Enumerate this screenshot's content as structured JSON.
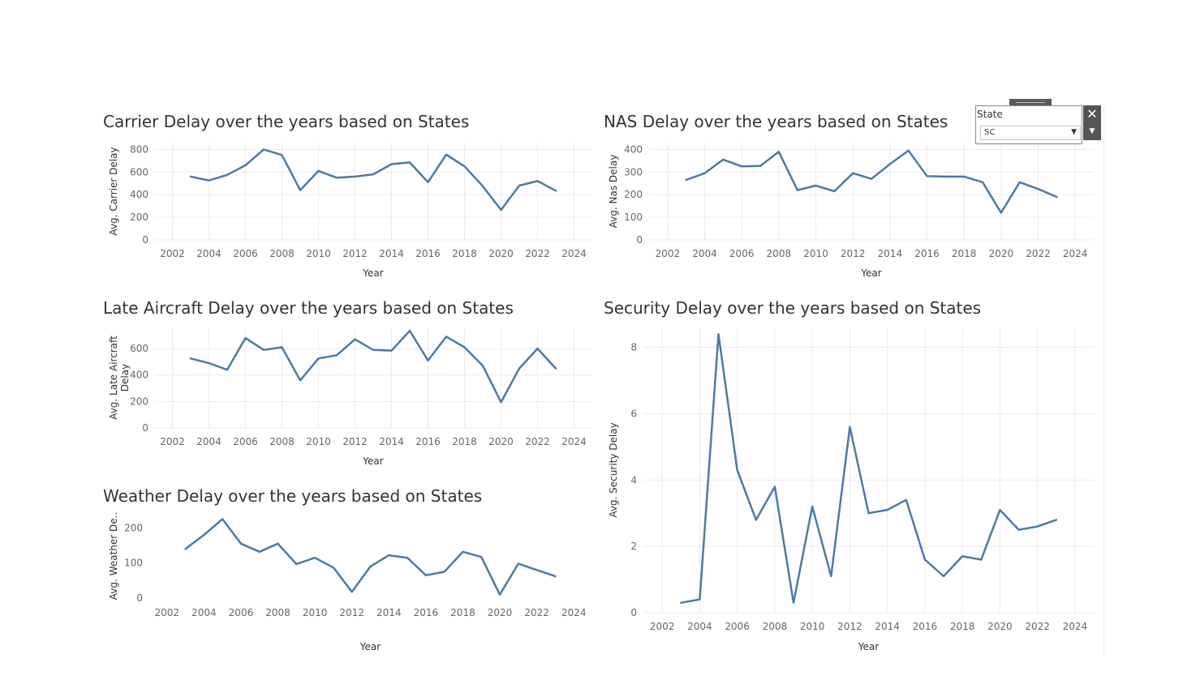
{
  "filter": {
    "label": "State",
    "value": "SC",
    "close_icon": "close-icon",
    "menu_icon": "dropdown-menu-icon"
  },
  "chart_data": [
    {
      "id": "carrier",
      "type": "line",
      "title": "Carrier Delay over the years based on States",
      "xlabel": "Year",
      "ylabel": "Avg. Carrier Delay",
      "xlim": [
        2001,
        2025
      ],
      "ylim": [
        0,
        860
      ],
      "x_ticks": [
        2002,
        2004,
        2006,
        2008,
        2010,
        2012,
        2014,
        2016,
        2018,
        2020,
        2022,
        2024
      ],
      "y_ticks": [
        0,
        200,
        400,
        600,
        800
      ],
      "grid": true,
      "color": "#4e79a7",
      "x": [
        2003,
        2004,
        2005,
        2006,
        2007,
        2008,
        2009,
        2010,
        2011,
        2012,
        2013,
        2014,
        2015,
        2016,
        2017,
        2018,
        2019,
        2020,
        2021,
        2022,
        2023
      ],
      "values": [
        560,
        525,
        575,
        660,
        800,
        750,
        440,
        610,
        550,
        560,
        580,
        670,
        685,
        510,
        755,
        650,
        475,
        265,
        480,
        520,
        435
      ]
    },
    {
      "id": "nas",
      "type": "line",
      "title": "NAS Delay over the years based on States",
      "xlabel": "Year",
      "ylabel": "Avg. Nas Delay",
      "xlim": [
        2001,
        2025
      ],
      "ylim": [
        0,
        430
      ],
      "x_ticks": [
        2002,
        2004,
        2006,
        2008,
        2010,
        2012,
        2014,
        2016,
        2018,
        2020,
        2022,
        2024
      ],
      "y_ticks": [
        0,
        100,
        200,
        300,
        400
      ],
      "grid": true,
      "color": "#4e79a7",
      "x": [
        2003,
        2004,
        2005,
        2006,
        2007,
        2008,
        2009,
        2010,
        2011,
        2012,
        2013,
        2014,
        2015,
        2016,
        2017,
        2018,
        2019,
        2020,
        2021,
        2022,
        2023
      ],
      "values": [
        265,
        295,
        355,
        325,
        327,
        390,
        220,
        240,
        215,
        295,
        270,
        335,
        395,
        282,
        280,
        280,
        255,
        120,
        255,
        225,
        190
      ]
    },
    {
      "id": "late_aircraft",
      "type": "line",
      "title": "Late Aircraft Delay over the years based on States",
      "xlabel": "Year",
      "ylabel": "Avg. Late Aircraft Delay",
      "xlim": [
        2001,
        2025
      ],
      "ylim": [
        0,
        760
      ],
      "x_ticks": [
        2002,
        2004,
        2006,
        2008,
        2010,
        2012,
        2014,
        2016,
        2018,
        2020,
        2022,
        2024
      ],
      "y_ticks": [
        0,
        200,
        400,
        600
      ],
      "grid": true,
      "color": "#4e79a7",
      "x": [
        2003,
        2004,
        2005,
        2006,
        2007,
        2008,
        2009,
        2010,
        2011,
        2012,
        2013,
        2014,
        2015,
        2016,
        2017,
        2018,
        2019,
        2020,
        2021,
        2022,
        2023
      ],
      "values": [
        525,
        490,
        440,
        680,
        590,
        610,
        360,
        525,
        550,
        670,
        590,
        585,
        735,
        510,
        690,
        610,
        470,
        195,
        450,
        600,
        450
      ]
    },
    {
      "id": "weather",
      "type": "line",
      "title": "Weather Delay over the years based on States",
      "xlabel": "Year",
      "ylabel": "Avg. Weather De..",
      "xlim": [
        2001,
        2025
      ],
      "ylim": [
        0,
        240
      ],
      "x_ticks": [
        2002,
        2004,
        2006,
        2008,
        2010,
        2012,
        2014,
        2016,
        2018,
        2020,
        2022,
        2024
      ],
      "y_ticks": [
        0,
        100,
        200
      ],
      "grid": false,
      "color": "#4e79a7",
      "x": [
        2003,
        2004,
        2005,
        2006,
        2007,
        2008,
        2009,
        2010,
        2011,
        2012,
        2013,
        2014,
        2015,
        2016,
        2017,
        2018,
        2019,
        2020,
        2021,
        2022,
        2023
      ],
      "values": [
        140,
        180,
        225,
        155,
        132,
        155,
        97,
        115,
        87,
        18,
        90,
        122,
        115,
        65,
        75,
        132,
        117,
        10,
        98,
        80,
        62
      ]
    },
    {
      "id": "security",
      "type": "line",
      "title": "Security Delay over the years based on States",
      "xlabel": "Year",
      "ylabel": "Avg. Security Delay",
      "xlim": [
        2001,
        2025
      ],
      "ylim": [
        0,
        8.6
      ],
      "x_ticks": [
        2002,
        2004,
        2006,
        2008,
        2010,
        2012,
        2014,
        2016,
        2018,
        2020,
        2022,
        2024
      ],
      "y_ticks": [
        0,
        2,
        4,
        6,
        8
      ],
      "grid": true,
      "color": "#4e79a7",
      "x": [
        2003,
        2004,
        2005,
        2006,
        2007,
        2008,
        2009,
        2010,
        2011,
        2012,
        2013,
        2014,
        2015,
        2016,
        2017,
        2018,
        2019,
        2020,
        2021,
        2022,
        2023
      ],
      "values": [
        0.3,
        0.4,
        8.4,
        4.3,
        2.8,
        3.8,
        0.3,
        3.2,
        1.1,
        5.6,
        3.0,
        3.1,
        3.4,
        1.6,
        1.1,
        1.7,
        1.6,
        3.1,
        2.5,
        2.6,
        2.8
      ]
    }
  ]
}
